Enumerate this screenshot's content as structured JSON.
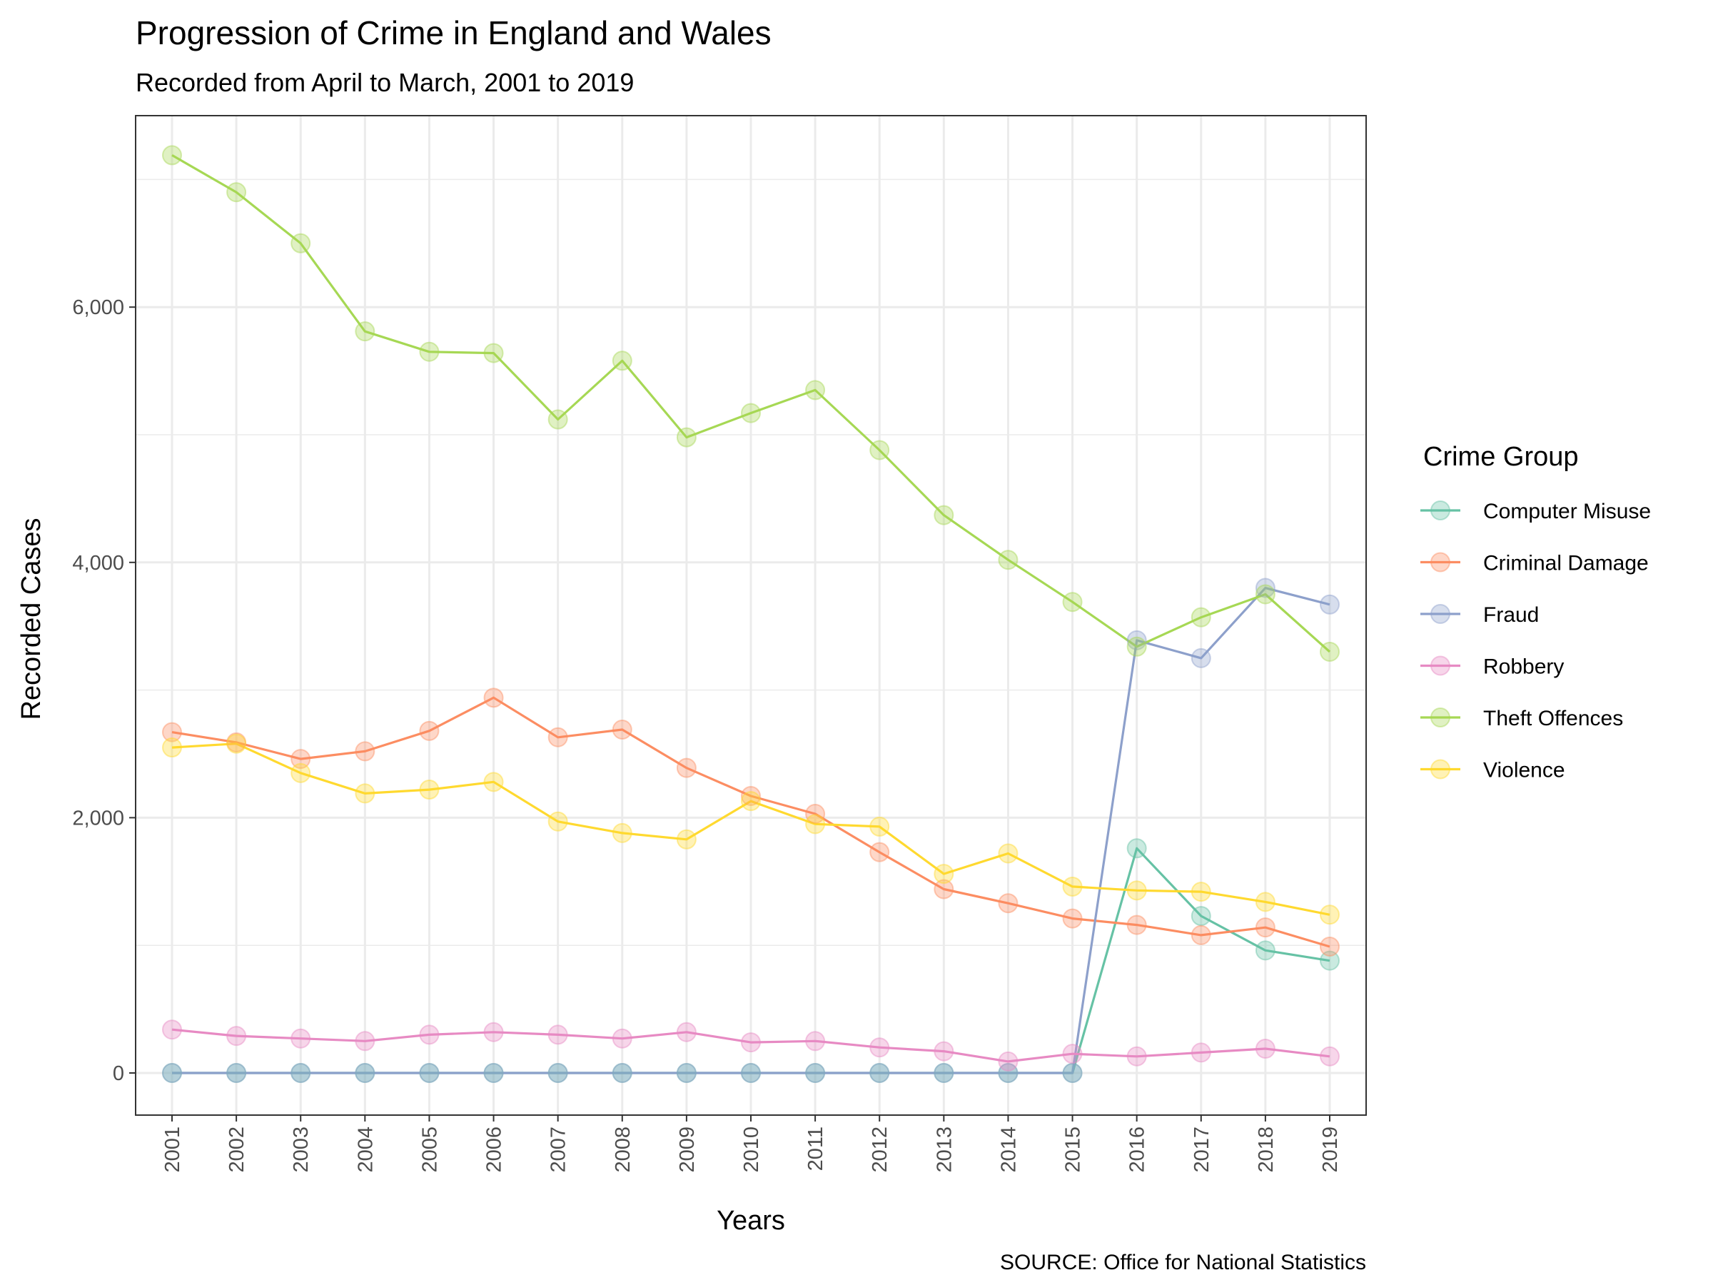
{
  "chart_data": {
    "type": "line",
    "title": "Progression of Crime in England and Wales",
    "subtitle": "Recorded from April to March, 2001 to 2019",
    "xlabel": "Years",
    "ylabel": "Recorded Cases",
    "caption": "SOURCE: Office for National Statistics",
    "legend_title": "Crime Group",
    "legend_position": "right",
    "ylim": [
      -330,
      7500
    ],
    "yticks": [
      0,
      2000,
      4000,
      6000
    ],
    "ytick_labels": [
      "0",
      "2,000",
      "4,000",
      "6,000"
    ],
    "grid": true,
    "x": [
      "2001",
      "2002",
      "2003",
      "2004",
      "2005",
      "2006",
      "2007",
      "2008",
      "2009",
      "2010",
      "2011",
      "2012",
      "2013",
      "2014",
      "2015",
      "2016",
      "2017",
      "2018",
      "2019"
    ],
    "series": [
      {
        "name": "Computer Misuse",
        "color": "#66c2a5",
        "values": [
          0,
          0,
          0,
          0,
          0,
          0,
          0,
          0,
          0,
          0,
          0,
          0,
          0,
          0,
          0,
          1760,
          1230,
          960,
          880
        ]
      },
      {
        "name": "Criminal Damage",
        "color": "#fc8d62",
        "values": [
          2670,
          2590,
          2460,
          2520,
          2680,
          2940,
          2630,
          2690,
          2390,
          2170,
          2030,
          1730,
          1440,
          1330,
          1210,
          1160,
          1080,
          1140,
          990
        ]
      },
      {
        "name": "Fraud",
        "color": "#8da0cb",
        "values": [
          0,
          0,
          0,
          0,
          0,
          0,
          0,
          0,
          0,
          0,
          0,
          0,
          0,
          0,
          0,
          3390,
          3250,
          3800,
          3670
        ]
      },
      {
        "name": "Robbery",
        "color": "#e78ac3",
        "values": [
          340,
          290,
          270,
          250,
          300,
          320,
          300,
          270,
          320,
          240,
          250,
          200,
          170,
          90,
          150,
          130,
          160,
          190,
          130
        ]
      },
      {
        "name": "Theft Offences",
        "color": "#a6d854",
        "values": [
          7190,
          6900,
          6500,
          5810,
          5650,
          5640,
          5120,
          5580,
          4980,
          5170,
          5350,
          4880,
          4370,
          4020,
          3690,
          3340,
          3570,
          3750,
          3300
        ]
      },
      {
        "name": "Violence",
        "color": "#ffd92f",
        "values": [
          2550,
          2580,
          2350,
          2190,
          2220,
          2280,
          1970,
          1880,
          1830,
          2130,
          1950,
          1930,
          1560,
          1720,
          1460,
          1430,
          1420,
          1340,
          1240
        ]
      }
    ]
  }
}
